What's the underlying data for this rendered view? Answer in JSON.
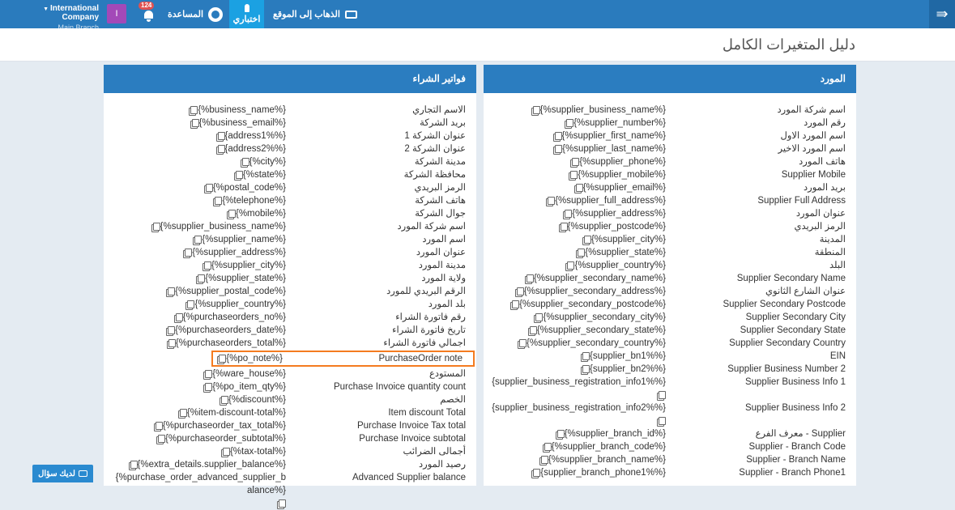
{
  "topbar": {
    "company": "International Company",
    "branch": "Main Branch",
    "avatar_letter": "I",
    "notifications": "124",
    "help": "المساعدة",
    "my_test": "اختباري",
    "go_to_site": "الذهاب إلى الموقع"
  },
  "page": {
    "title": "دليل المتغيرات الكامل"
  },
  "colors": {
    "topbar": "#2a7bbd",
    "panel_header": "#2b7dc0",
    "highlight": "#f47b20",
    "avatar": "#a349b8"
  },
  "supplier_panel": {
    "title": "المورد",
    "rows": [
      [
        "اسم شركة المورد",
        "{%supplier_business_name%}"
      ],
      [
        "رقم المورد",
        "{%supplier_number%}"
      ],
      [
        "اسم المورد الاول",
        "{%supplier_first_name%}"
      ],
      [
        "اسم المورد الاخير",
        "{%supplier_last_name%}"
      ],
      [
        "هاتف المورد",
        "{%supplier_phone%}"
      ],
      [
        "Supplier Mobile",
        "{%supplier_mobile%}"
      ],
      [
        "بريد المورد",
        "{%supplier_email%}"
      ],
      [
        "Supplier Full Address",
        "{%supplier_full_address%}"
      ],
      [
        "عنوان المورد",
        "{%supplier_address%}"
      ],
      [
        "الرمز البريدي",
        "{%supplier_postcode%}"
      ],
      [
        "المدينة",
        "{%supplier_city%}"
      ],
      [
        "المنطقة",
        "{%supplier_state%}"
      ],
      [
        "البلد",
        "{%supplier_country%}"
      ],
      [
        "Supplier Secondary Name",
        "{%supplier_secondary_name%}"
      ],
      [
        "عنوان الشارع الثانوي",
        "{%supplier_secondary_address%}"
      ],
      [
        "Supplier Secondary Postcode",
        "{%supplier_secondary_postcode%}"
      ],
      [
        "Supplier Secondary City",
        "{%supplier_secondary_city%}"
      ],
      [
        "Supplier Secondary State",
        "{%supplier_secondary_state%}"
      ],
      [
        "Supplier Secondary Country",
        "{%supplier_secondary_country%}"
      ],
      [
        "EIN",
        "{supplier_bn1%%}"
      ],
      [
        "Supplier Business Number 2",
        "{supplier_bn2%%}"
      ],
      [
        "Supplier Business Info 1",
        "{supplier_business_registration_info1%%}"
      ],
      [
        "Supplier Business Info 2",
        "{supplier_business_registration_info2%%}"
      ],
      [
        "Supplier - معرف الفرع",
        "{%supplier_branch_id%}"
      ],
      [
        "Supplier - Branch Code",
        "{%supplier_branch_code%}"
      ],
      [
        "Supplier - Branch Name",
        "{%supplier_branch_name%}"
      ],
      [
        "Supplier - Branch Phone1",
        "{supplier_branch_phone1%%}"
      ]
    ]
  },
  "purchase_panel": {
    "title": "فواتير الشراء",
    "rows": [
      [
        "الاسم التجاري",
        "{%business_name%}"
      ],
      [
        "بريد الشركة",
        "{%business_email%}"
      ],
      [
        "عنوان الشركة 1",
        "{address1%%}"
      ],
      [
        "عنوان الشركة 2",
        "{address2%%}"
      ],
      [
        "مدينة الشركة",
        "{%city%}"
      ],
      [
        "محافظة الشركة",
        "{%state%}"
      ],
      [
        "الرمز البريدي",
        "{%postal_code%}"
      ],
      [
        "هاتف الشركة",
        "{%telephone%}"
      ],
      [
        "جوال الشركة",
        "{%mobile%}"
      ],
      [
        "اسم شركة المورد",
        "{%supplier_business_name%}"
      ],
      [
        "اسم المورد",
        "{%supplier_name%}"
      ],
      [
        "عنوان المورد",
        "{%supplier_address%}"
      ],
      [
        "مدينة المورد",
        "{%supplier_city%}"
      ],
      [
        "ولاية المورد",
        "{%supplier_state%}"
      ],
      [
        "الرقم البريدي للمورد",
        "{%supplier_postal_code%}"
      ],
      [
        "بلد المورد",
        "{%supplier_country%}"
      ],
      [
        "رقم فاتورة الشراء",
        "{%purchaseorders_no%}"
      ],
      [
        "تاريخ فاتورة الشراء",
        "{%purchaseorders_date%}"
      ],
      [
        "اجمالي فاتورة الشراء",
        "{%purchaseorders_total%}"
      ],
      [
        "PurchaseOrder note",
        "{%po_note%}"
      ],
      [
        "المستودع",
        "{%ware_house%}"
      ],
      [
        "Purchase Invoice quantity count",
        "{%po_item_qty%}"
      ],
      [
        "الخصم",
        "{%discount%}"
      ],
      [
        "Item discount Total",
        "{%item-discount-total%}"
      ],
      [
        "Purchase Invoice Tax total",
        "{%purchaseorder_tax_total%}"
      ],
      [
        "Purchase Invoice subtotal",
        "{%purchaseorder_subtotal%}"
      ],
      [
        "أجمالى الضرائب",
        "{%tax-total%}"
      ],
      [
        "رصيد المورد",
        "{%extra_details.supplier_balance%}"
      ],
      [
        "Advanced Supplier balance",
        "{%purchase_order_advanced_supplier_balance%}"
      ]
    ],
    "highlighted_row": 19
  },
  "help_button": {
    "label": "لديك سؤال"
  }
}
